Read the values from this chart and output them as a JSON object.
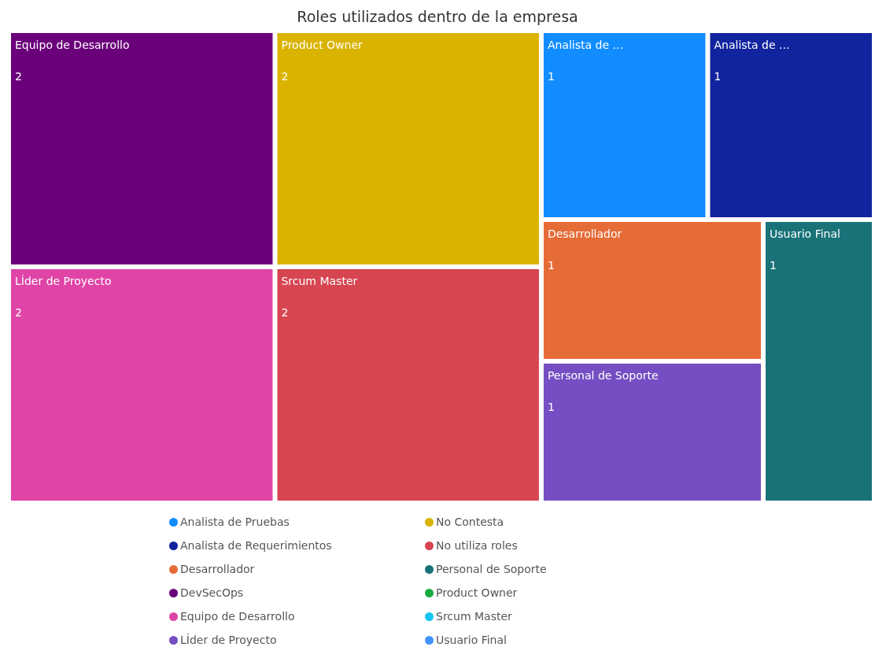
{
  "chart_data": {
    "type": "other",
    "title": "Roles utilizados dentro de la empresa",
    "categories": [
      "Equipo de Desarrollo",
      "LÍder de Proyecto",
      "Product Owner",
      "Srcum Master",
      "Analista de ...",
      "Analista de ...",
      "Desarrollador",
      "Personal de Soporte",
      "Usuario Final"
    ],
    "values": [
      2,
      2,
      2,
      2,
      1,
      1,
      1,
      1,
      1
    ],
    "colors": [
      "#6b007b",
      "#e044a7",
      "#d9b300",
      "#d64550",
      "#118dff",
      "#12239e",
      "#e66c37",
      "#744ec2",
      "#197278"
    ],
    "data_labels": true,
    "legend": "bottom",
    "series": [
      {
        "name": "Analista de Pruebas",
        "color": "#118dff",
        "values": [
          null,
          null,
          null,
          null,
          null,
          null,
          null,
          null,
          null
        ]
      },
      {
        "name": "Analista de Requerimientos",
        "color": "#12239e",
        "values": [
          null,
          null,
          null,
          null,
          null,
          null,
          null,
          null,
          null
        ]
      },
      {
        "name": "Desarrollador",
        "color": "#e66c37",
        "values": [
          null,
          null,
          null,
          null,
          null,
          null,
          null,
          null,
          null
        ]
      },
      {
        "name": "DevSecOps",
        "color": "#6b007b",
        "values": [
          null,
          null,
          null,
          null,
          null,
          null,
          null,
          null,
          null
        ]
      },
      {
        "name": "Equipo de Desarrollo",
        "color": "#e044a7",
        "values": [
          null,
          null,
          null,
          null,
          null,
          null,
          null,
          null,
          null
        ]
      },
      {
        "name": "LÍder de Proyecto",
        "color": "#744ec2",
        "values": [
          null,
          null,
          null,
          null,
          null,
          null,
          null,
          null,
          null
        ]
      },
      {
        "name": "No Contesta",
        "color": "#d9b300",
        "values": [
          null,
          null,
          null,
          null,
          null,
          null,
          null,
          null,
          null
        ]
      },
      {
        "name": "No utiliza roles",
        "color": "#d64550",
        "values": [
          null,
          null,
          null,
          null,
          null,
          null,
          null,
          null,
          null
        ]
      },
      {
        "name": "Personal de Soporte",
        "color": "#197278",
        "values": [
          null,
          null,
          null,
          null,
          null,
          null,
          null,
          null,
          null
        ]
      },
      {
        "name": "Product Owner",
        "color": "#1aab40",
        "values": [
          null,
          null,
          null,
          null,
          null,
          null,
          null,
          null,
          null
        ]
      },
      {
        "name": "Srcum Master",
        "color": "#15c6f4",
        "values": [
          null,
          null,
          null,
          null,
          null,
          null,
          null,
          null,
          null
        ]
      },
      {
        "name": "Usuario Final",
        "color": "#4092ff",
        "values": [
          null,
          null,
          null,
          null,
          null,
          null,
          null,
          null,
          null
        ]
      }
    ]
  }
}
